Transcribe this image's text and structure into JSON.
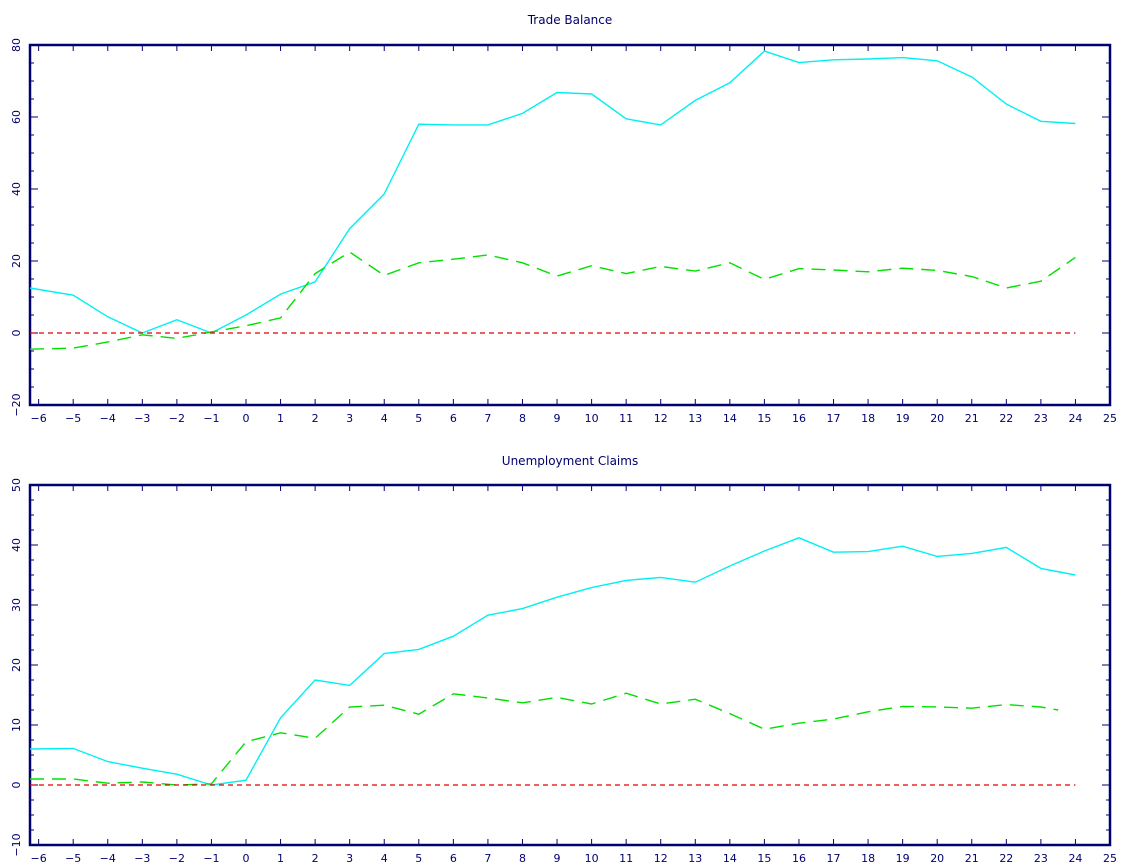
{
  "chart_data": [
    {
      "type": "line",
      "title": "Trade Balance",
      "xlabel": "",
      "ylabel": "",
      "xlim": [
        -6.25,
        25
      ],
      "ylim": [
        -20,
        80
      ],
      "xticks": [
        -6,
        -5,
        -4,
        -3,
        -2,
        -1,
        0,
        1,
        2,
        3,
        4,
        5,
        6,
        7,
        8,
        9,
        10,
        11,
        12,
        13,
        14,
        15,
        16,
        17,
        18,
        19,
        20,
        21,
        22,
        23,
        24,
        25
      ],
      "xtick_labels": [
        "−6",
        "−5",
        "−4",
        "−3",
        "−2",
        "−1",
        "0",
        "1",
        "2",
        "3",
        "4",
        "5",
        "6",
        "7",
        "8",
        "9",
        "10",
        "11",
        "12",
        "13",
        "14",
        "15",
        "16",
        "17",
        "18",
        "19",
        "20",
        "21",
        "22",
        "23",
        "24",
        "25"
      ],
      "yticks": [
        -20,
        0,
        20,
        40,
        60,
        80
      ],
      "ytick_labels": [
        "−20",
        "0",
        "20",
        "40",
        "60",
        "80"
      ],
      "grid": false,
      "series": [
        {
          "style": "solid",
          "color": "#00f0f0",
          "x": [
            -6.25,
            -5,
            -4,
            -3,
            -2,
            -1,
            0,
            1,
            2,
            3,
            4,
            5,
            6,
            7,
            8,
            9,
            10,
            11,
            12,
            13,
            14,
            15,
            16,
            17,
            18,
            19,
            20,
            21,
            22,
            23,
            24
          ],
          "y": [
            12.5,
            10.5,
            4.5,
            0,
            3.7,
            0,
            5,
            10.8,
            14.2,
            29,
            38.6,
            58,
            57.8,
            57.8,
            61,
            66.8,
            66.4,
            59.5,
            57.8,
            64.6,
            69.5,
            78.3,
            75.1,
            75.9,
            76.1,
            76.5,
            75.6,
            71.1,
            63.6,
            58.8,
            58.2
          ]
        },
        {
          "style": "dashed",
          "color": "#00e000",
          "x": [
            -6.25,
            -5,
            -4,
            -3,
            -2,
            -1,
            0,
            1,
            2,
            3,
            4,
            5,
            6,
            7,
            8,
            9,
            10,
            11,
            12,
            13,
            14,
            15,
            16,
            17,
            18,
            19,
            20,
            21,
            22,
            23,
            24
          ],
          "y": [
            -4.5,
            -4.2,
            -2.5,
            -0.5,
            -1.5,
            0.3,
            2,
            4.2,
            16.5,
            22.5,
            16,
            19.5,
            20.5,
            21.7,
            19.5,
            15.8,
            18.7,
            16.5,
            18.5,
            17.2,
            19.5,
            14.9,
            17.9,
            17.5,
            17,
            18,
            17.4,
            15.7,
            12.5,
            14.4,
            21
          ]
        },
        {
          "style": "zero",
          "color": "#e00000",
          "x": [
            -6.25,
            24
          ],
          "y": [
            0,
            0
          ]
        }
      ]
    },
    {
      "type": "line",
      "title": "Unemployment Claims",
      "xlabel": "",
      "ylabel": "",
      "xlim": [
        -6.25,
        25
      ],
      "ylim": [
        -10,
        50
      ],
      "xticks": [
        -6,
        -5,
        -4,
        -3,
        -2,
        -1,
        0,
        1,
        2,
        3,
        4,
        5,
        6,
        7,
        8,
        9,
        10,
        11,
        12,
        13,
        14,
        15,
        16,
        17,
        18,
        19,
        20,
        21,
        22,
        23,
        24,
        25
      ],
      "xtick_labels": [
        "−6",
        "−5",
        "−4",
        "−3",
        "−2",
        "−1",
        "0",
        "1",
        "2",
        "3",
        "4",
        "5",
        "6",
        "7",
        "8",
        "9",
        "10",
        "11",
        "12",
        "13",
        "14",
        "15",
        "16",
        "17",
        "18",
        "19",
        "20",
        "21",
        "22",
        "23",
        "24",
        "25"
      ],
      "yticks": [
        -10,
        0,
        10,
        20,
        30,
        40,
        50
      ],
      "ytick_labels": [
        "−10",
        "0",
        "10",
        "20",
        "30",
        "40",
        "50"
      ],
      "grid": false,
      "series": [
        {
          "style": "solid",
          "color": "#00f0f0",
          "x": [
            -6.25,
            -5,
            -4,
            -3,
            -2,
            -1,
            0,
            1,
            2,
            3,
            4,
            5,
            6,
            7,
            8,
            9,
            10,
            11,
            12,
            13,
            14,
            15,
            16,
            17,
            18,
            19,
            20,
            21,
            22,
            23,
            24
          ],
          "y": [
            6,
            6.1,
            3.9,
            2.8,
            1.8,
            0,
            0.8,
            11.2,
            17.5,
            16.6,
            21.9,
            22.6,
            24.8,
            28.3,
            29.4,
            31.3,
            32.9,
            34.1,
            34.6,
            33.8,
            36.5,
            39,
            41.2,
            38.8,
            38.9,
            39.8,
            38.1,
            38.6,
            39.6,
            36.1,
            35
          ]
        },
        {
          "style": "dashed",
          "color": "#00e000",
          "x": [
            -6.25,
            -5,
            -4,
            -3,
            -2,
            -1,
            0,
            1,
            2,
            3,
            4,
            5,
            6,
            7,
            8,
            9,
            10,
            11,
            12,
            13,
            14,
            15,
            16,
            17,
            18,
            19,
            20,
            21,
            22,
            23,
            23.5
          ],
          "y": [
            1,
            1,
            0.3,
            0.5,
            0,
            0.2,
            7.2,
            8.7,
            7.8,
            13,
            13.3,
            11.8,
            15.2,
            14.5,
            13.7,
            14.6,
            13.5,
            15.3,
            13.5,
            14.3,
            11.9,
            9.3,
            10.3,
            11,
            12.2,
            13.1,
            13,
            12.8,
            13.4,
            13,
            12.5
          ]
        },
        {
          "style": "zero",
          "color": "#e00000",
          "x": [
            -6.25,
            24
          ],
          "y": [
            0,
            0
          ]
        }
      ]
    }
  ]
}
